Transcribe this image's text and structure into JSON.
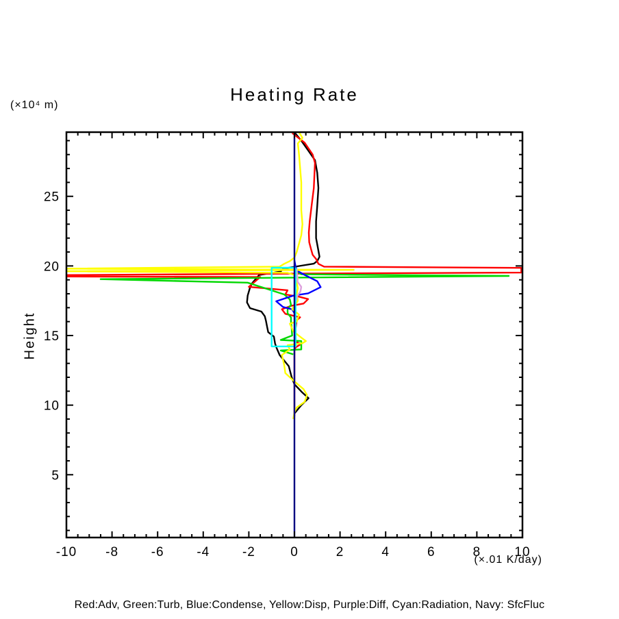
{
  "title": "Heating Rate",
  "y_axis_unit": "(×10⁴ m)",
  "x_axis_unit": "(×.01 K/day)",
  "y_axis_label": "Height",
  "legend_text": "Red:Adv, Green:Turb, Blue:Condense, Yellow:Disp, Purple:Diff, Cyan:Radiation, Navy: SfcFluc",
  "chart_data": {
    "type": "line",
    "title": "Heating Rate",
    "xlabel": "(×.01 K/day)",
    "ylabel": "Height (×10⁴ m)",
    "xlim": [
      -10,
      10
    ],
    "ylim": [
      0.49,
      29.61
    ],
    "x_major_ticks": [
      -10,
      -8,
      -6,
      -4,
      -2,
      0,
      2,
      4,
      6,
      8,
      10
    ],
    "x_minor_step": 0.5,
    "y_major_ticks": [
      5,
      10,
      15,
      20,
      25
    ],
    "y_minor_step": 1,
    "grid": false,
    "frame": true,
    "axis_color": "#000000",
    "series": [
      {
        "name": "black-unlabeled-total",
        "label": "",
        "color": "#000000",
        "points": [
          [
            0,
            29.6
          ],
          [
            0.3,
            29.0
          ],
          [
            0.6,
            28.3
          ],
          [
            0.9,
            27.6
          ],
          [
            1.0,
            26.7
          ],
          [
            1.05,
            25.6
          ],
          [
            1.0,
            24.3
          ],
          [
            0.95,
            23.2
          ],
          [
            0.95,
            22.0
          ],
          [
            1.05,
            21.1
          ],
          [
            1.1,
            20.66
          ],
          [
            1.0,
            20.35
          ],
          [
            0.85,
            20.16
          ],
          [
            0.3,
            20.02
          ],
          [
            -0.5,
            19.8
          ],
          [
            -0.6,
            19.6
          ],
          [
            -1.55,
            19.35
          ],
          [
            -1.85,
            18.77
          ],
          [
            -1.95,
            18.44
          ],
          [
            -2.05,
            17.87
          ],
          [
            -2.08,
            17.38
          ],
          [
            -1.95,
            16.97
          ],
          [
            -1.45,
            16.72
          ],
          [
            -1.3,
            16.39
          ],
          [
            -1.25,
            16.06
          ],
          [
            -1.2,
            15.65
          ],
          [
            -1.15,
            15.24
          ],
          [
            -0.9,
            14.92
          ],
          [
            -0.85,
            14.43
          ],
          [
            -0.78,
            14.1
          ],
          [
            -0.65,
            13.6
          ],
          [
            -0.25,
            12.8
          ],
          [
            -0.12,
            12.0
          ],
          [
            0,
            11.5
          ],
          [
            0.35,
            10.9
          ],
          [
            0.62,
            10.5
          ],
          [
            0.3,
            10.0
          ],
          [
            0,
            9.4
          ]
        ]
      },
      {
        "name": "adv",
        "label": "Red:Adv",
        "color": "#ff0000",
        "points": [
          [
            -0.1,
            29.55
          ],
          [
            0.45,
            28.85
          ],
          [
            0.8,
            28.0
          ],
          [
            0.9,
            27.4
          ],
          [
            0.85,
            25.6
          ],
          [
            0.75,
            24.3
          ],
          [
            0.67,
            23.2
          ],
          [
            0.63,
            22.4
          ],
          [
            0.65,
            21.7
          ],
          [
            0.73,
            21.2
          ],
          [
            0.8,
            20.8
          ],
          [
            0.95,
            20.5
          ],
          [
            1.05,
            20.15
          ],
          [
            1.3,
            19.95
          ],
          [
            9.95,
            19.86
          ],
          [
            9.95,
            19.52
          ],
          [
            0.5,
            19.45
          ],
          [
            -10.2,
            19.34
          ],
          [
            -10.2,
            19.24
          ],
          [
            -1.5,
            19.2
          ],
          [
            -2.0,
            18.5
          ],
          [
            -0.3,
            18.25
          ],
          [
            -0.4,
            17.95
          ],
          [
            0.2,
            17.79
          ],
          [
            0.6,
            17.62
          ],
          [
            0.4,
            17.3
          ],
          [
            -0.15,
            17.13
          ],
          [
            -0.55,
            16.89
          ],
          [
            -0.4,
            16.56
          ],
          [
            0.25,
            16.31
          ],
          [
            0.1,
            16.1
          ],
          [
            0.05,
            15.5
          ],
          [
            0.05,
            14.55
          ],
          [
            0.3,
            14.4
          ],
          [
            0.05,
            14.15
          ],
          [
            0,
            13.9
          ],
          [
            0,
            9.2
          ]
        ]
      },
      {
        "name": "turb",
        "label": "Green:Turb",
        "color": "#00d800",
        "points": [
          [
            0.05,
            20.0
          ],
          [
            0.1,
            19.6
          ],
          [
            0.3,
            19.4
          ],
          [
            9.4,
            19.28
          ],
          [
            -8.5,
            19.05
          ],
          [
            -2.05,
            18.8
          ],
          [
            -0.45,
            17.95
          ],
          [
            -0.2,
            17.6
          ],
          [
            -0.15,
            17.2
          ],
          [
            -0.3,
            16.9
          ],
          [
            -0.3,
            16.6
          ],
          [
            -0.15,
            16.3
          ],
          [
            -0.15,
            16.0
          ],
          [
            -0.12,
            15.5
          ],
          [
            -0.1,
            15.0
          ],
          [
            -0.6,
            14.68
          ],
          [
            0.3,
            14.6
          ],
          [
            0.3,
            14.0
          ],
          [
            -0.6,
            13.93
          ],
          [
            -0.05,
            13.65
          ]
        ]
      },
      {
        "name": "condense",
        "label": "Blue:Condense",
        "color": "#0000ff",
        "points": [
          [
            0,
            20.4
          ],
          [
            0.05,
            19.95
          ],
          [
            0.1,
            19.67
          ],
          [
            0.45,
            19.35
          ],
          [
            1.0,
            18.9
          ],
          [
            1.15,
            18.48
          ],
          [
            0.6,
            18.03
          ],
          [
            -0.05,
            17.87
          ],
          [
            -0.8,
            17.46
          ],
          [
            -0.5,
            17.05
          ],
          [
            -0.1,
            16.88
          ],
          [
            0,
            16.6
          ]
        ]
      },
      {
        "name": "disp",
        "label": "Yellow:Disp",
        "color": "#ffff00",
        "points": [
          [
            0.2,
            29.6
          ],
          [
            0.35,
            29.2
          ],
          [
            0.15,
            28.8
          ],
          [
            0.2,
            28.0
          ],
          [
            0.3,
            26.0
          ],
          [
            0.3,
            24.0
          ],
          [
            0.35,
            23.0
          ],
          [
            0.3,
            22.2
          ],
          [
            0.2,
            21.6
          ],
          [
            0.1,
            21.0
          ],
          [
            0,
            20.6
          ],
          [
            -0.2,
            20.35
          ],
          [
            -0.45,
            20.15
          ],
          [
            -0.65,
            19.95
          ],
          [
            -10.2,
            19.8
          ],
          [
            2.6,
            19.72
          ],
          [
            -10.2,
            19.62
          ],
          [
            -0.3,
            19.5
          ],
          [
            0.1,
            19.3
          ],
          [
            0.15,
            19.1
          ],
          [
            0.1,
            18.8
          ],
          [
            0.15,
            18.4
          ],
          [
            0.1,
            18.0
          ],
          [
            0.15,
            17.5
          ],
          [
            -0.1,
            16.9
          ],
          [
            0.2,
            16.5
          ],
          [
            0.1,
            16.0
          ],
          [
            -0.2,
            15.85
          ],
          [
            -0.05,
            15.3
          ],
          [
            0.3,
            14.85
          ],
          [
            0.5,
            14.6
          ],
          [
            0.35,
            14.45
          ],
          [
            -0.3,
            14.3
          ],
          [
            -0.2,
            14.0
          ],
          [
            -0.55,
            13.6
          ],
          [
            -0.45,
            12.9
          ],
          [
            -0.4,
            12.3
          ],
          [
            0,
            11.7
          ],
          [
            0.4,
            11.15
          ],
          [
            0.55,
            10.73
          ],
          [
            0.45,
            10.24
          ],
          [
            0.1,
            9.83
          ],
          [
            0,
            9.5
          ],
          [
            -0.05,
            9.0
          ]
        ]
      },
      {
        "name": "diff",
        "label": "Purple:Diff",
        "color": "#dda0dd",
        "points": [
          [
            0.1,
            19.8
          ],
          [
            0.12,
            19.3
          ],
          [
            0.14,
            18.85
          ],
          [
            0.3,
            18.5
          ],
          [
            0.26,
            18.15
          ],
          [
            0.12,
            17.85
          ],
          [
            0.08,
            17.5
          ]
        ]
      },
      {
        "name": "radiation",
        "label": "Cyan:Radiation",
        "color": "#00ffff",
        "points": [
          [
            0.05,
            19.87
          ],
          [
            -1.0,
            19.87
          ],
          [
            -1.0,
            14.22
          ],
          [
            0.05,
            14.22
          ],
          [
            0.05,
            19.87
          ]
        ]
      },
      {
        "name": "sfcfluc",
        "label": "Navy: SfcFluc",
        "color": "#000080",
        "points": [
          [
            0,
            29.61
          ],
          [
            0,
            0.49
          ]
        ]
      }
    ]
  }
}
